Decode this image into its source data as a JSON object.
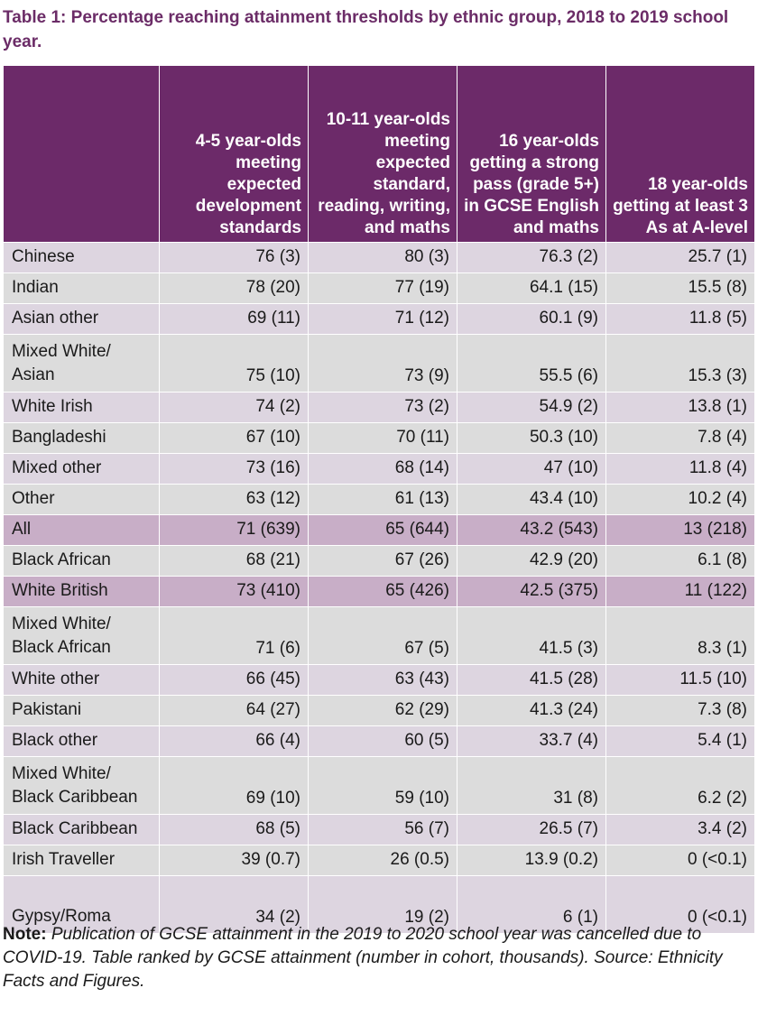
{
  "title": "Table 1: Percentage reaching attainment thresholds by ethnic group, 2018 to 2019 school year.",
  "table": {
    "headers": [
      "",
      "4-5 year-olds meeting expected development standards",
      "10-11 year-olds meeting expected standard, reading, writing, and maths",
      "16 year-olds getting a strong pass (grade 5+) in GCSE English and maths",
      "18 year-olds getting at least 3 As at A-level"
    ],
    "rows": [
      {
        "group": "Chinese",
        "cells": [
          "76 (3)",
          "80 (3)",
          "76.3 (2)",
          "25.7 (1)"
        ],
        "style": "light"
      },
      {
        "group": "Indian",
        "cells": [
          "78 (20)",
          "77 (19)",
          "64.1 (15)",
          "15.5 (8)"
        ],
        "style": "grey"
      },
      {
        "group": "Asian other",
        "cells": [
          "69 (11)",
          "71 (12)",
          "60.1 (9)",
          "11.8 (5)"
        ],
        "style": "light"
      },
      {
        "group": "Mixed White/ Asian",
        "cells": [
          "75 (10)",
          "73 (9)",
          "55.5 (6)",
          "15.3 (3)"
        ],
        "style": "grey"
      },
      {
        "group": "White Irish",
        "cells": [
          "74 (2)",
          "73 (2)",
          "54.9 (2)",
          "13.8 (1)"
        ],
        "style": "light"
      },
      {
        "group": "Bangladeshi",
        "cells": [
          "67 (10)",
          "70 (11)",
          "50.3 (10)",
          "7.8 (4)"
        ],
        "style": "grey"
      },
      {
        "group": "Mixed other",
        "cells": [
          "73 (16)",
          "68 (14)",
          "47 (10)",
          "11.8 (4)"
        ],
        "style": "light"
      },
      {
        "group": "Other",
        "cells": [
          "63 (12)",
          "61 (13)",
          "43.4 (10)",
          "10.2 (4)"
        ],
        "style": "grey"
      },
      {
        "group": "All",
        "cells": [
          "71 (639)",
          "65 (644)",
          "43.2 (543)",
          "13 (218)"
        ],
        "style": "hl"
      },
      {
        "group": "Black African",
        "cells": [
          "68 (21)",
          "67 (26)",
          "42.9 (20)",
          "6.1 (8)"
        ],
        "style": "grey"
      },
      {
        "group": "White British",
        "cells": [
          "73 (410)",
          "65 (426)",
          "42.5 (375)",
          "11 (122)"
        ],
        "style": "hl"
      },
      {
        "group": "Mixed White/ Black African",
        "cells": [
          "71 (6)",
          "67 (5)",
          "41.5 (3)",
          "8.3 (1)"
        ],
        "style": "grey"
      },
      {
        "group": "White other",
        "cells": [
          "66 (45)",
          "63 (43)",
          "41.5 (28)",
          "11.5 (10)"
        ],
        "style": "light"
      },
      {
        "group": "Pakistani",
        "cells": [
          "64 (27)",
          "62 (29)",
          "41.3 (24)",
          "7.3 (8)"
        ],
        "style": "grey"
      },
      {
        "group": "Black other",
        "cells": [
          "66 (4)",
          "60 (5)",
          "33.7 (4)",
          "5.4 (1)"
        ],
        "style": "light"
      },
      {
        "group": "Mixed White/ Black Caribbean",
        "cells": [
          "69 (10)",
          "59 (10)",
          "31 (8)",
          "6.2 (2)"
        ],
        "style": "grey"
      },
      {
        "group": "Black Caribbean",
        "cells": [
          "68 (5)",
          "56 (7)",
          "26.5 (7)",
          "3.4 (2)"
        ],
        "style": "light"
      },
      {
        "group": "Irish Traveller",
        "cells": [
          "39 (0.7)",
          "26 (0.5)",
          "13.9 (0.2)",
          "0 (<0.1)"
        ],
        "style": "grey"
      },
      {
        "group": "Gypsy/Roma",
        "cells": [
          "34 (2)",
          "19 (2)",
          "6 (1)",
          "0 (<0.1)"
        ],
        "style": "light"
      }
    ]
  },
  "note": {
    "label": "Note:",
    "text": "Publication of GCSE attainment in the 2019 to 2020 school year was cancelled due to COVID-19. Table ranked by GCSE attainment (number in cohort, thousands). Source: Ethnicity Facts and Figures."
  }
}
